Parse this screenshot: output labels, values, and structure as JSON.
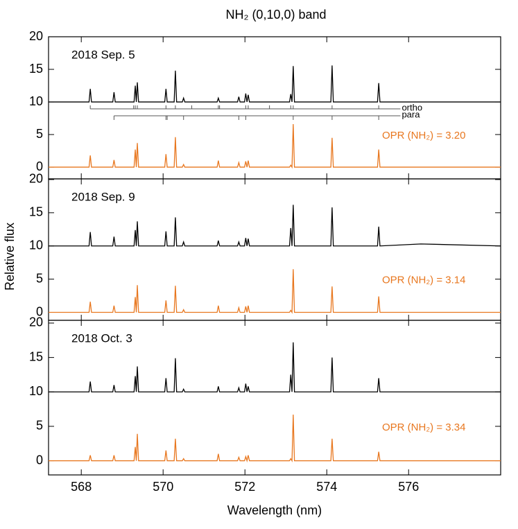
{
  "figure": {
    "title": "NH₂ (0,10,0) band",
    "xlabel": "Wavelength (nm)",
    "ylabel": "Relative flux"
  },
  "chart_data": [
    {
      "type": "line",
      "label": "2018 Sep. 5",
      "annotation": "OPR (NH₂) = 3.20",
      "x": [
        567.2,
        568.19,
        568.22,
        568.25,
        568.77,
        568.8,
        568.83,
        569.29,
        569.32,
        569.345,
        569.37,
        569.4,
        570.04,
        570.07,
        570.1,
        570.27,
        570.3,
        570.33,
        570.47,
        570.5,
        570.53,
        571.32,
        571.35,
        571.38,
        571.82,
        571.85,
        571.88,
        571.99,
        572.02,
        572.05,
        572.08,
        572.11,
        573.09,
        573.12,
        573.15,
        573.18,
        573.21,
        574.1,
        574.13,
        574.16,
        575.24,
        575.27,
        575.3,
        576.3,
        578.25
      ],
      "series": [
        {
          "color": "#000000",
          "values": [
            10,
            10,
            12,
            10,
            10,
            11.5,
            10,
            10,
            12.5,
            10,
            13,
            10,
            10,
            12,
            10,
            10,
            14.8,
            10,
            10,
            10.6,
            10,
            10,
            10.6,
            10,
            10,
            10.8,
            10,
            10,
            11.3,
            10,
            11.1,
            10,
            10,
            11.2,
            10,
            15.5,
            10,
            10,
            15.6,
            10,
            10,
            12.9,
            10,
            10,
            10
          ]
        },
        {
          "color": "#e8771f",
          "values": [
            0,
            0,
            1.8,
            0,
            0,
            1.1,
            0,
            0,
            2.7,
            0,
            3.7,
            0,
            0,
            2.0,
            0,
            0,
            4.6,
            0,
            0,
            0.4,
            0,
            0,
            1.0,
            0,
            0,
            0.7,
            0,
            0,
            0.9,
            0,
            1.0,
            0,
            0,
            0.3,
            0,
            6.6,
            0,
            0,
            4.5,
            0,
            0,
            2.7,
            0,
            0,
            0
          ]
        }
      ],
      "line_lists": [
        {
          "name": "ortho",
          "start": 568.22,
          "end": 575.8,
          "lines": [
            568.22,
            569.28,
            569.32,
            569.37,
            570.07,
            570.3,
            570.7,
            571.35,
            571.38,
            572.02,
            572.08,
            572.6,
            573.12,
            573.18,
            574.13,
            575.27
          ]
        },
        {
          "name": "para",
          "start": 568.8,
          "end": 575.8,
          "lines": [
            568.8,
            570.07,
            570.1,
            570.5,
            571.85,
            572.02,
            573.18,
            574.13,
            575.27
          ]
        }
      ],
      "xlim": [
        567.2,
        578.25
      ],
      "ylim": [
        -1.8,
        20
      ],
      "xticks": [
        568,
        570,
        572,
        574,
        576
      ],
      "yticks": [
        0,
        5,
        10,
        15,
        20
      ]
    },
    {
      "type": "line",
      "label": "2018 Sep. 9",
      "annotation": "OPR (NH₂) = 3.14",
      "x": [
        567.2,
        568.19,
        568.22,
        568.25,
        568.77,
        568.8,
        568.83,
        569.29,
        569.32,
        569.345,
        569.37,
        569.4,
        570.04,
        570.07,
        570.1,
        570.27,
        570.3,
        570.33,
        570.47,
        570.5,
        570.53,
        571.32,
        571.35,
        571.38,
        571.82,
        571.85,
        571.88,
        571.99,
        572.02,
        572.05,
        572.08,
        572.11,
        573.09,
        573.12,
        573.15,
        573.18,
        573.21,
        574.1,
        574.13,
        574.16,
        575.24,
        575.27,
        575.3,
        576.3,
        578.25
      ],
      "series": [
        {
          "color": "#000000",
          "values": [
            10,
            10,
            12.1,
            10,
            10,
            11.4,
            10,
            10,
            12.4,
            10,
            13.7,
            10,
            10,
            12.2,
            10,
            10,
            14.3,
            10,
            10,
            10.6,
            10,
            10,
            10.8,
            10,
            10,
            10.6,
            10,
            10,
            11.2,
            10,
            11.1,
            10,
            10,
            12.7,
            10,
            16.2,
            10,
            10,
            15.8,
            10,
            10,
            12.9,
            10,
            10.3,
            10
          ]
        },
        {
          "color": "#e8771f",
          "values": [
            0,
            0,
            1.6,
            0,
            0,
            1.0,
            0,
            0,
            2.3,
            0,
            4.1,
            0,
            0,
            1.8,
            0,
            0,
            4.0,
            0,
            0,
            0.4,
            0,
            0,
            1.0,
            0,
            0,
            0.7,
            0,
            0,
            0.9,
            0,
            1.0,
            0,
            0,
            0.3,
            0,
            6.5,
            0,
            0,
            3.9,
            0,
            0,
            2.4,
            0,
            0,
            0
          ]
        }
      ],
      "xlim": [
        567.2,
        578.25
      ],
      "ylim": [
        -1.2,
        20.1
      ],
      "xticks": [
        568,
        570,
        572,
        574,
        576
      ],
      "yticks": [
        0,
        5,
        10,
        15,
        20
      ]
    },
    {
      "type": "line",
      "label": "2018 Oct. 3",
      "annotation": "OPR (NH₂) = 3.34",
      "x": [
        567.2,
        568.19,
        568.22,
        568.25,
        568.77,
        568.8,
        568.83,
        569.29,
        569.32,
        569.345,
        569.37,
        569.4,
        570.04,
        570.07,
        570.1,
        570.27,
        570.3,
        570.33,
        570.47,
        570.5,
        570.53,
        571.32,
        571.35,
        571.38,
        571.82,
        571.85,
        571.88,
        571.99,
        572.02,
        572.05,
        572.08,
        572.11,
        573.09,
        573.12,
        573.15,
        573.18,
        573.21,
        574.1,
        574.13,
        574.16,
        575.24,
        575.27,
        575.3,
        576.3,
        578.25
      ],
      "series": [
        {
          "color": "#000000",
          "values": [
            10,
            10,
            11.5,
            10,
            10,
            11.0,
            10,
            10,
            12.3,
            10,
            13.7,
            10,
            10,
            12.0,
            10,
            10,
            14.9,
            10,
            10,
            10.4,
            10,
            10,
            10.8,
            10,
            10,
            10.6,
            10,
            10,
            11.2,
            10,
            10.8,
            10,
            10,
            12.5,
            10,
            17.2,
            10,
            10,
            15.0,
            10,
            10,
            12.0,
            10,
            10,
            10
          ]
        },
        {
          "color": "#e8771f",
          "values": [
            0,
            0,
            0.8,
            0,
            0,
            0.8,
            0,
            0,
            2.0,
            0,
            3.9,
            0,
            0,
            1.5,
            0,
            0,
            3.2,
            0,
            0,
            0.3,
            0,
            0,
            1.0,
            0,
            0,
            0.5,
            0,
            0,
            0.6,
            0,
            0.8,
            0,
            0,
            0.3,
            0,
            6.7,
            0,
            0,
            3.2,
            0,
            0,
            1.3,
            0,
            0,
            0
          ]
        }
      ],
      "xlim": [
        567.2,
        578.25
      ],
      "ylim": [
        -2.06,
        20.4
      ],
      "xticks": [
        568,
        570,
        572,
        574,
        576
      ],
      "yticks": [
        0,
        5,
        10,
        15,
        20
      ]
    }
  ]
}
